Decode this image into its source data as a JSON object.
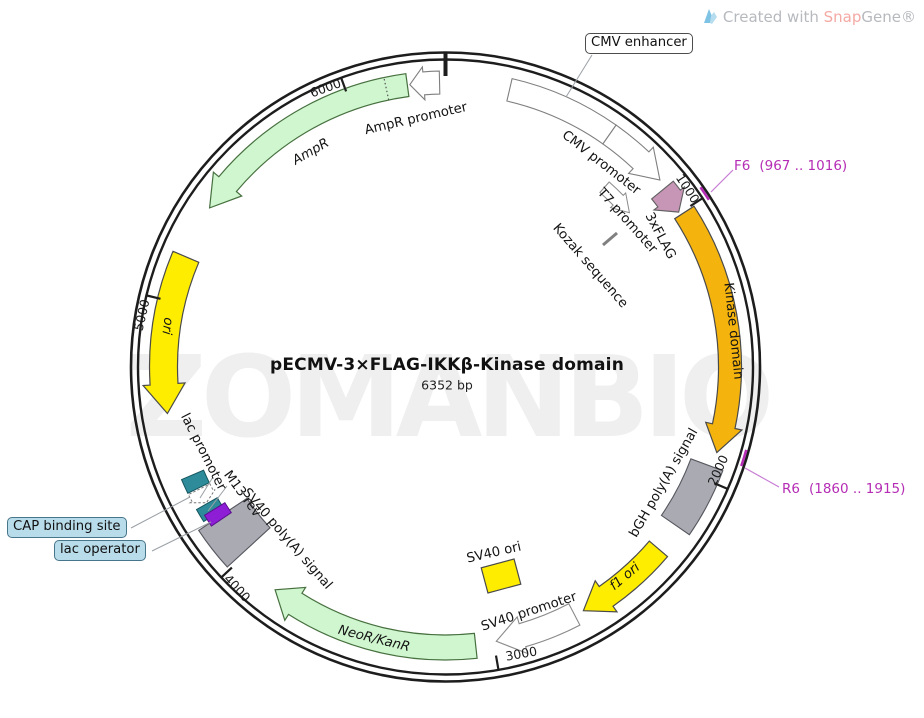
{
  "credit": {
    "prefix": "Created with ",
    "snap": "Snap",
    "gene": "Gene®"
  },
  "plasmid": {
    "title": "pECMV-3×FLAG-IKKβ-Kinase domain",
    "size": "6352 bp",
    "watermark": "ZOMANBIO"
  },
  "ticks": [
    {
      "label": "1000"
    },
    {
      "label": "2000"
    },
    {
      "label": "3000"
    },
    {
      "label": "4000"
    },
    {
      "label": "5000"
    },
    {
      "label": "6000"
    }
  ],
  "features": {
    "cmv_enhancer": {
      "label": "CMV enhancer",
      "color": "#ffffff"
    },
    "cmv_promoter": {
      "label": "CMV promoter",
      "color": "#ffffff"
    },
    "t7_promoter": {
      "label": "T7 promoter",
      "color": "#ffffff"
    },
    "x3flag": {
      "label": "3xFLAG",
      "color": "#c795b5"
    },
    "kozak": {
      "label": "Kozak sequence",
      "color": "#808080"
    },
    "kinase_domain": {
      "label": "Kinase domain",
      "color": "#f5b40d"
    },
    "bgh_polya": {
      "label": "bGH poly(A) signal",
      "color": "#a9aab2"
    },
    "f1_ori": {
      "label": "f1 ori",
      "color": "#ffed00"
    },
    "sv40_ori": {
      "label": "SV40 ori",
      "color": "#ffed00"
    },
    "sv40_promoter": {
      "label": "SV40 promoter",
      "color": "#ffffff"
    },
    "neor_kanr": {
      "label": "NeoR/KanR",
      "color": "#cff6cf"
    },
    "sv40_polya": {
      "label": "SV40 poly(A) signal",
      "color": "#a9aab2"
    },
    "m13_rev": {
      "label": "M13 rev",
      "color": "#2e8b9a"
    },
    "lac_operator": {
      "label": "lac operator",
      "color": "#8e1ed6"
    },
    "lac_promoter": {
      "label": "lac promoter",
      "color": "#ffffff"
    },
    "cap_binding_site": {
      "label": "CAP binding site",
      "color": "#2e8b9a"
    },
    "ori": {
      "label": "ori",
      "color": "#ffed00"
    },
    "ampr": {
      "label": "AmpR",
      "color": "#cff6cf"
    },
    "ampr_promoter": {
      "label": "AmpR promoter",
      "color": "#ffffff"
    }
  },
  "primers": {
    "f6": {
      "name": "F6",
      "range": "(967 .. 1016)"
    },
    "r6": {
      "name": "R6",
      "range": "(1860 .. 1915)"
    }
  },
  "colors": {
    "primer": "#b52db5",
    "ring": "#1d1d1d",
    "watermark_gray": "#efefef",
    "callout_blue": "#b9dcea"
  }
}
